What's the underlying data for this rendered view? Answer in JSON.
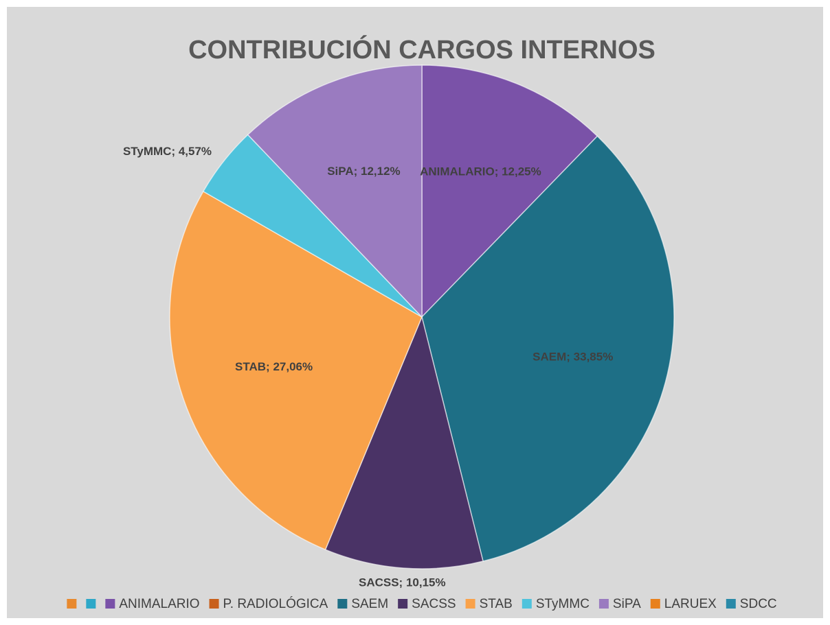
{
  "chart_data": {
    "type": "pie",
    "title": "CONTRIBUCIÓN CARGOS INTERNOS",
    "categories": [
      null,
      null,
      "ANIMALARIO",
      "P. RADIOLÓGICA",
      "SAEM",
      "SACSS",
      "STAB",
      "STyMMC",
      "SiPA",
      "LARUEX",
      "SDCC"
    ],
    "values": [
      0,
      0,
      12.25,
      0,
      33.85,
      10.15,
      27.06,
      4.57,
      12.12,
      0,
      0
    ],
    "value_labels": [
      null,
      null,
      "ANIMALARIO; 12,25%",
      null,
      "SAEM; 33,85%",
      "SACSS; 10,15%",
      "STAB; 27,06%",
      "STyMMC; 4,57%",
      "SiPA; 12,12%",
      null,
      null
    ],
    "colors": [
      "#e8892e",
      "#2ea8c8",
      "#7a52a8",
      "#c8601c",
      "#1e6f86",
      "#4a3366",
      "#f9a24a",
      "#4fc3dc",
      "#9a7bc0",
      "#e8801c",
      "#2a8aa8"
    ],
    "legend": "bottom"
  }
}
